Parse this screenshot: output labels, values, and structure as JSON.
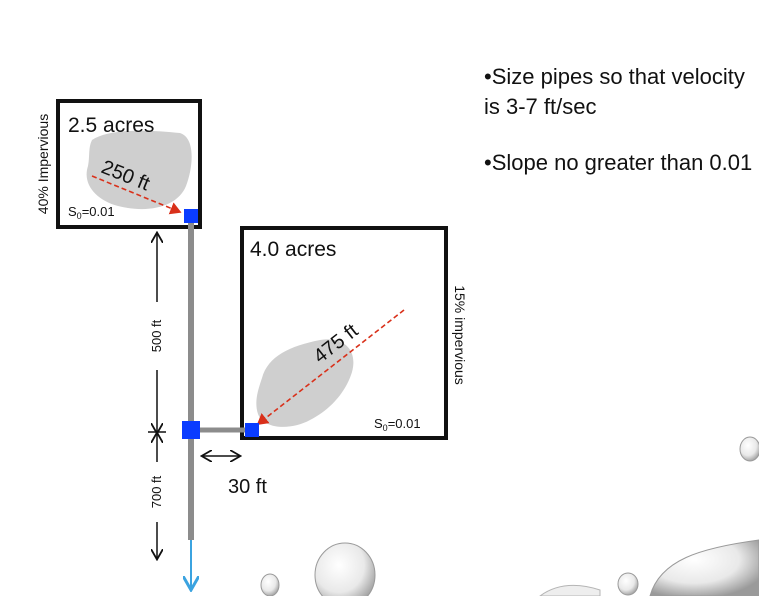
{
  "watershed1": {
    "area_label": "2.5 acres",
    "flow_length_label": "250 ft",
    "slope_prefix": "S",
    "slope_sub": "0",
    "slope_value": "=0.01",
    "impervious_label": "40% Impervious"
  },
  "watershed2": {
    "area_label": "4.0 acres",
    "flow_length_label": "475 ft",
    "slope_prefix": "S",
    "slope_sub": "0",
    "slope_value": "=0.01",
    "impervious_label": "15% impervious"
  },
  "dimensions": {
    "pipe1_length": "500 ft",
    "pipe2_length": "700 ft",
    "lateral_length": "30 ft"
  },
  "notes": {
    "bullet1": "•Size pipes so that velocity is 3-7 ft/sec",
    "bullet2": "•Slope no greater than 0.01"
  },
  "colors": {
    "node": "#0a3cff",
    "pipe": "#8c8c8c",
    "flow_arrow": "#d9301a",
    "outlet_arrow": "#3ba3e0",
    "area_fill": "#cfcfcf"
  }
}
